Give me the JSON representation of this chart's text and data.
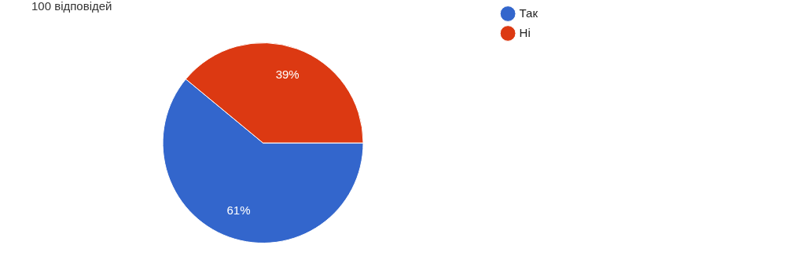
{
  "chart_data": {
    "type": "pie",
    "title": "100 відповідей",
    "categories": [
      "Так",
      "Ні"
    ],
    "values": [
      61,
      39
    ],
    "colors": [
      "#3366cc",
      "#dc3912"
    ],
    "value_labels": [
      "61%",
      "39%"
    ],
    "legend": "top right"
  }
}
